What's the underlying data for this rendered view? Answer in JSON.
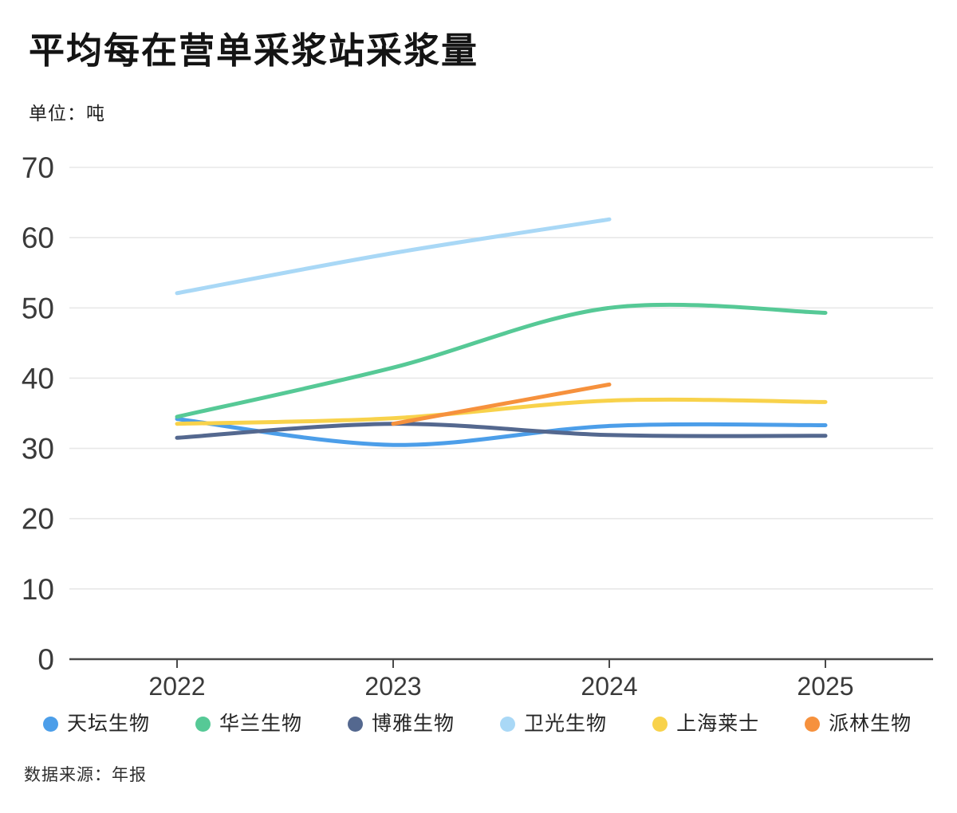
{
  "title": "平均每在营单采浆站采浆量",
  "subtitle": "单位：吨",
  "source": "数据来源：年报",
  "chart_data": {
    "type": "line",
    "x": [
      "2022",
      "2023",
      "2024",
      "2025"
    ],
    "series": [
      {
        "key": "tiantan",
        "name": "天坛生物",
        "color": "#4C9EE9",
        "values": [
          34.2,
          30.5,
          33.2,
          33.3
        ]
      },
      {
        "key": "hualan",
        "name": "华兰生物",
        "color": "#56C996",
        "values": [
          34.5,
          41.5,
          50.0,
          49.3
        ]
      },
      {
        "key": "boya",
        "name": "博雅生物",
        "color": "#54688F",
        "values": [
          31.5,
          33.5,
          31.9,
          31.8
        ]
      },
      {
        "key": "weiguang",
        "name": "卫光生物",
        "color": "#A9D8F6",
        "values": [
          52.1,
          57.8,
          62.6,
          null
        ]
      },
      {
        "key": "raas",
        "name": "上海莱士",
        "color": "#F8D24B",
        "values": [
          33.5,
          34.3,
          36.8,
          36.6
        ]
      },
      {
        "key": "pailin",
        "name": "派林生物",
        "color": "#F6913D",
        "values": [
          null,
          33.5,
          39.1,
          null
        ]
      }
    ],
    "ylim": [
      0,
      70
    ],
    "ytick_step": 10,
    "grid": "horizontal-only",
    "legend_position": "bottom",
    "style": {
      "grid_color": "#e8e8e8",
      "axis_color": "#4a4a4a",
      "tick_text_color": "#3a3a3a",
      "line_width": 5
    }
  }
}
